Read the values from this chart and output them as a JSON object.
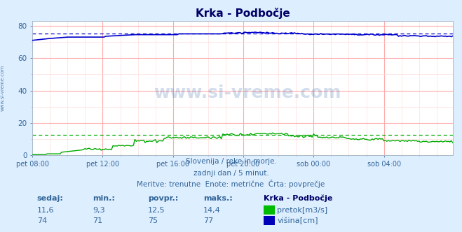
{
  "title": "Krka - Podbočje",
  "bg_color": "#ddeeff",
  "plot_bg_color": "#ffffff",
  "grid_color_major": "#ffaaaa",
  "grid_color_minor": "#ffdddd",
  "xlabel_ticks": [
    "pet 08:00",
    "pet 12:00",
    "pet 16:00",
    "pet 20:00",
    "sob 00:00",
    "sob 04:00"
  ],
  "ylim": [
    0,
    83
  ],
  "xlim": [
    0,
    287
  ],
  "pretok_avg": 12.5,
  "visina_avg": 75.0,
  "pretok_color": "#00aa00",
  "visina_color": "#0000cc",
  "avg_pretok_color": "#00aa00",
  "avg_visina_color": "#0000cc",
  "watermark": "www.si-vreme.com",
  "subtitle1": "Slovenija / reke in morje.",
  "subtitle2": "zadnji dan / 5 minut.",
  "subtitle3": "Meritve: trenutne  Enote: metrične  Črta: povprečje",
  "sidebar_text": "www.si-vreme.com",
  "n_points": 288,
  "text_color": "#336699",
  "title_color": "#000066",
  "footer_cols": [
    "sedaj:",
    "min.:",
    "povpr.:",
    "maks.:",
    "Krka - Podbočje"
  ],
  "footer_row1": [
    "11,6",
    "9,3",
    "12,5",
    "14,4"
  ],
  "footer_row2": [
    "74",
    "71",
    "75",
    "77"
  ],
  "legend_pretok": "pretok[m3/s]",
  "legend_visina": "višina[cm]",
  "pretok_swatch": "#00bb00",
  "visina_swatch": "#0000bb"
}
